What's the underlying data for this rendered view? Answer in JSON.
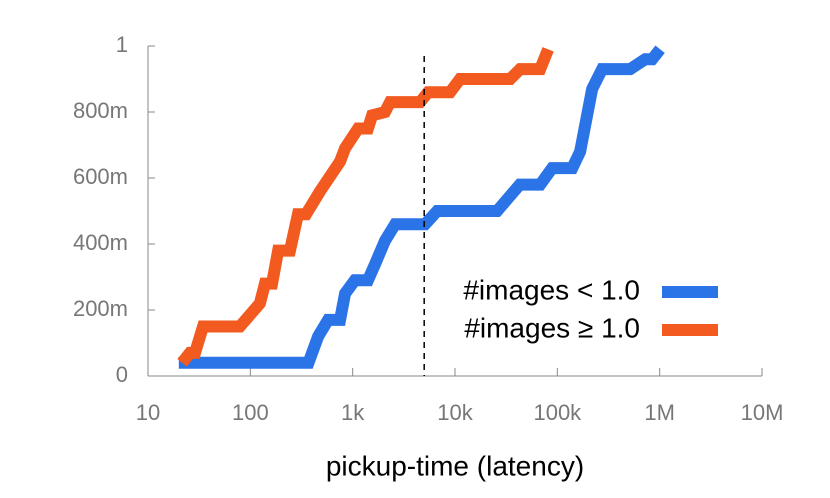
{
  "chart_data": {
    "type": "line",
    "xlabel": "pickup-time (latency)",
    "xscale": "log",
    "xlim": [
      10,
      10000000
    ],
    "xticks": [
      10,
      100,
      {
        "value": 1000,
        "label": "1k"
      },
      {
        "value": 10000,
        "label": "10k"
      },
      {
        "value": 100000,
        "label": "100k"
      },
      {
        "value": 1000000,
        "label": "1M"
      },
      {
        "value": 10000000,
        "label": "10M"
      }
    ],
    "ylim": [
      0,
      1
    ],
    "yticks": [
      0,
      {
        "value": 0.2,
        "label": "200m"
      },
      {
        "value": 0.4,
        "label": "400m"
      },
      {
        "value": 0.6,
        "label": "600m"
      },
      {
        "value": 0.8,
        "label": "800m"
      },
      1
    ],
    "reference_x": 5000,
    "legend": "lower right",
    "series": [
      {
        "name": "#images < 1.0",
        "color": "#2b74e8",
        "x": [
          20,
          370,
          460,
          575,
          753,
          843,
          1050,
          1410,
          1660,
          2070,
          2600,
          5100,
          6700,
          25800,
          43000,
          68000,
          89000,
          140000,
          167000,
          219000,
          274000,
          515000,
          722000,
          845000,
          1010000
        ],
        "values": [
          0.04,
          0.04,
          0.12,
          0.17,
          0.17,
          0.25,
          0.29,
          0.29,
          0.34,
          0.41,
          0.46,
          0.46,
          0.5,
          0.5,
          0.58,
          0.58,
          0.63,
          0.63,
          0.68,
          0.87,
          0.93,
          0.93,
          0.96,
          0.96,
          0.99
        ]
      },
      {
        "name": "#images ≥ 1.0",
        "color": "#f25a1f",
        "x": [
          21.5,
          25.7,
          28.8,
          34.5,
          79,
          124,
          139,
          163,
          187,
          244,
          292,
          350,
          480,
          753,
          843,
          1130,
          1410,
          1550,
          2070,
          2320,
          4560,
          5460,
          8960,
          11200,
          34600,
          43300,
          68000,
          81300
        ],
        "values": [
          0.04,
          0.07,
          0.07,
          0.15,
          0.15,
          0.22,
          0.28,
          0.28,
          0.38,
          0.38,
          0.49,
          0.49,
          0.56,
          0.65,
          0.69,
          0.75,
          0.75,
          0.79,
          0.8,
          0.83,
          0.83,
          0.86,
          0.86,
          0.9,
          0.9,
          0.93,
          0.93,
          0.99
        ]
      }
    ]
  }
}
